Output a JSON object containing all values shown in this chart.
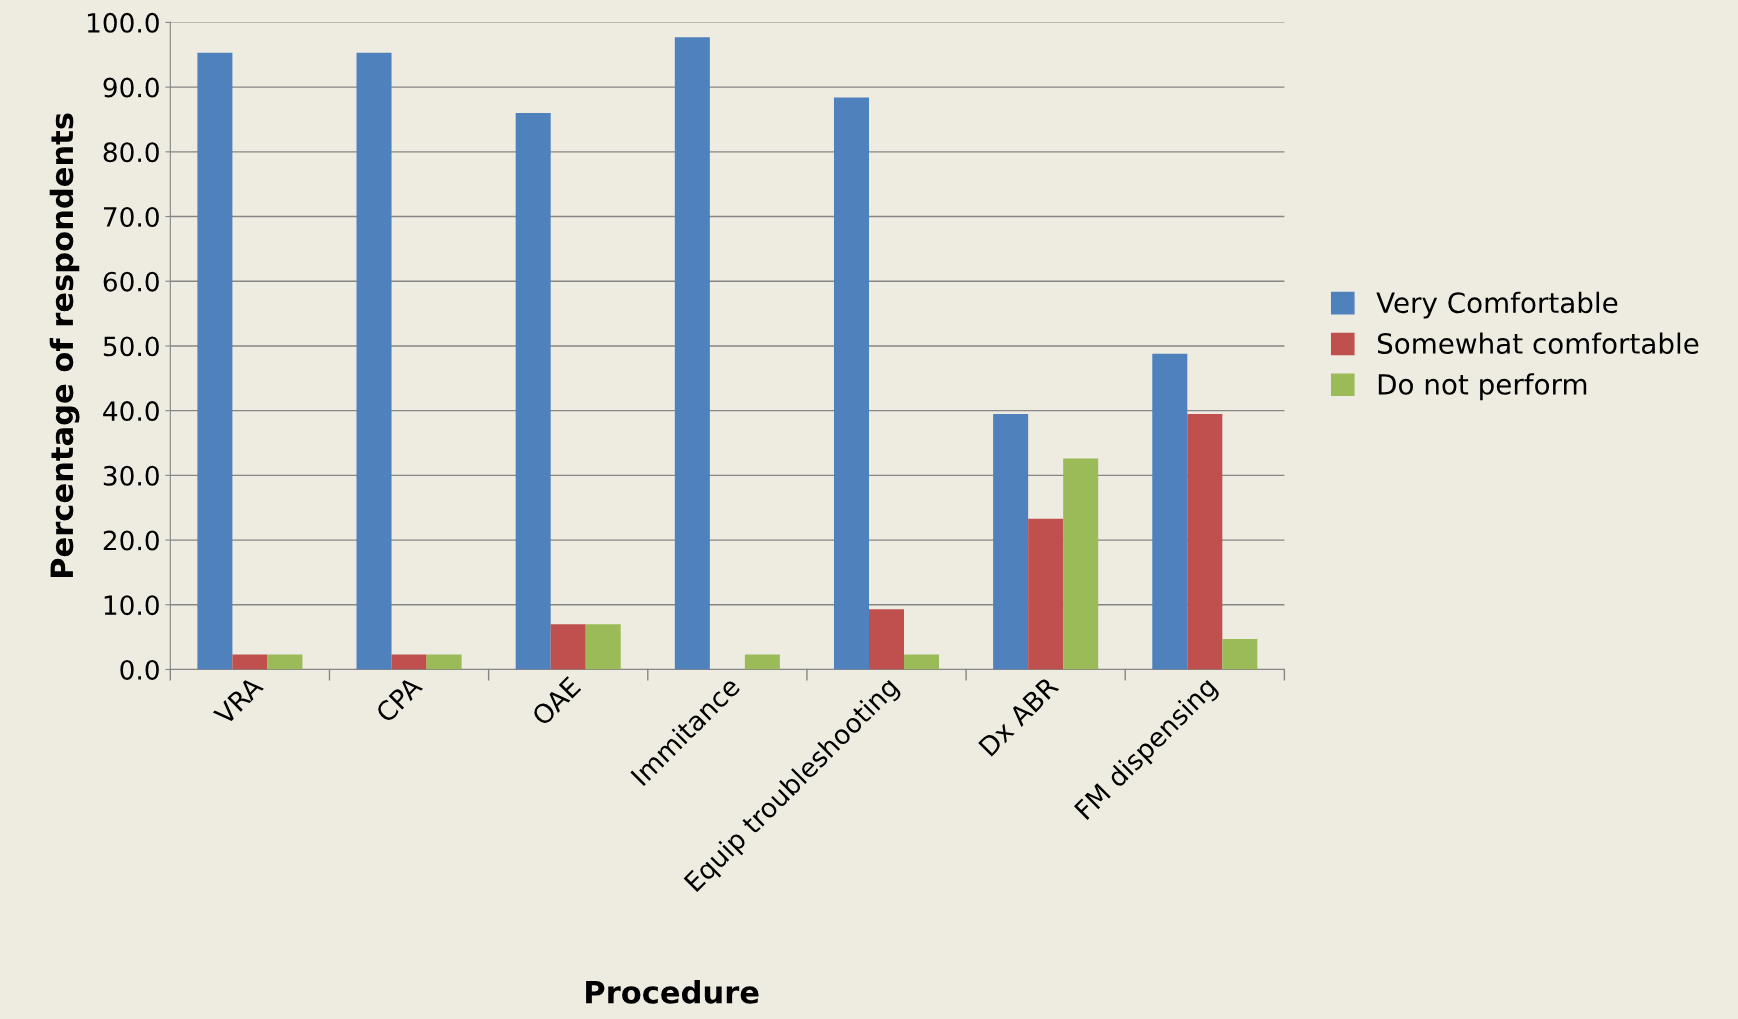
{
  "chart_data": {
    "type": "bar",
    "xlabel": "Procedure",
    "ylabel": "Percentage of respondents",
    "categories": [
      "VRA",
      "CPA",
      "OAE",
      "Immitance",
      "Equip troubleshooting",
      "Dx ABR",
      "FM dispensing"
    ],
    "series": [
      {
        "name": "Very Comfortable",
        "color": "#4f81bd",
        "values": [
          95.3,
          95.3,
          86.0,
          97.7,
          88.4,
          39.5,
          48.8
        ]
      },
      {
        "name": "Somewhat comfortable",
        "color": "#c0504d",
        "values": [
          2.3,
          2.3,
          7.0,
          0,
          9.3,
          23.3,
          39.5
        ]
      },
      {
        "name": "Do not perform",
        "color": "#9bbb59",
        "values": [
          2.3,
          2.3,
          7.0,
          2.3,
          2.3,
          32.6,
          4.7
        ]
      }
    ],
    "ylim": [
      0,
      100
    ],
    "yticks": [
      {
        "value": 0,
        "label": "0.0"
      },
      {
        "value": 10,
        "label": "10.0"
      },
      {
        "value": 20,
        "label": "20.0"
      },
      {
        "value": 30,
        "label": "30.0"
      },
      {
        "value": 40,
        "label": "40.0"
      },
      {
        "value": 50,
        "label": "50.0"
      },
      {
        "value": 60,
        "label": "60.0"
      },
      {
        "value": 70,
        "label": "70.0"
      },
      {
        "value": 80,
        "label": "80.0"
      },
      {
        "value": 90,
        "label": "90.0"
      },
      {
        "value": 100,
        "label": "100.0"
      }
    ],
    "grid": "y",
    "legend": "right"
  }
}
